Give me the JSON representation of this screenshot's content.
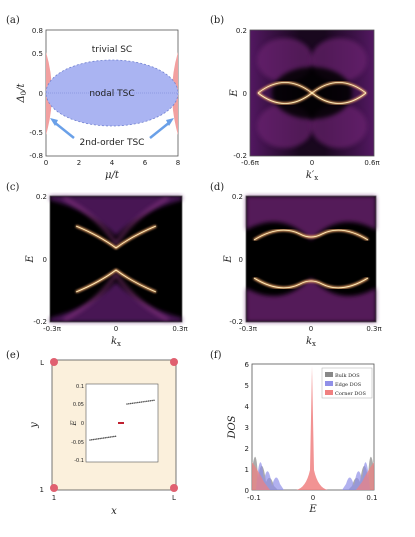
{
  "panels": {
    "a": {
      "label": "(a)",
      "region_trivial": "trivial SC",
      "region_nodal": "nodal TSC",
      "region_second": "2nd-order TSC",
      "ylabel": "Δ",
      "ylabel_sub": "0",
      "ylabel_tail": "/t",
      "xlabel": "μ/t",
      "yticks": [
        "0.8",
        "0.5",
        "0",
        "-0.5",
        "-0.8"
      ],
      "xticks": [
        "0",
        "2",
        "4",
        "6",
        "8"
      ]
    },
    "b": {
      "label": "(b)",
      "ylabel": "E",
      "xlabel": "k′",
      "xlabel_sub": "x",
      "yticks": [
        "0.2",
        "0",
        "-0.2"
      ],
      "xticks": [
        "-0.6π",
        "0",
        "0.6π"
      ]
    },
    "c": {
      "label": "(c)",
      "ylabel": "E",
      "xlabel": "k",
      "xlabel_sub": "x",
      "yticks": [
        "0.2",
        "0",
        "-0.2"
      ],
      "xticks": [
        "-0.3π",
        "0",
        "0.3π"
      ]
    },
    "d": {
      "label": "(d)",
      "ylabel": "E",
      "xlabel": "k",
      "xlabel_sub": "x",
      "yticks": [
        "0.2",
        "0",
        "-0.2"
      ],
      "xticks": [
        "-0.3π",
        "0",
        "0.3π"
      ]
    },
    "e": {
      "label": "(e)",
      "ylabel": "y",
      "xlabel": "x",
      "yticks": [
        "L",
        "1"
      ],
      "xticks": [
        "1",
        "L"
      ],
      "inset_ylabel": "E",
      "inset_yticks": [
        "0.1",
        "0.05",
        "0",
        "-0.05",
        "-0.1"
      ]
    },
    "f": {
      "label": "(f)",
      "ylabel": "DOS",
      "xlabel": "E",
      "yticks": [
        "6",
        "5",
        "4",
        "3",
        "2",
        "1",
        "0"
      ],
      "xticks": [
        "-0.1",
        "0",
        "0.1"
      ],
      "legend": [
        "Bulk DOS",
        "Edge DOS",
        "Corner DOS"
      ]
    }
  },
  "colors": {
    "nodal": "#aab4f2",
    "second": "#f2a0a0",
    "trivial": "#ffffff",
    "lattice_bg": "#fbf0dc",
    "corner": "#e06070",
    "bulk": "#888888",
    "edge": "#9090e8",
    "cornerdos": "#f08080"
  }
}
